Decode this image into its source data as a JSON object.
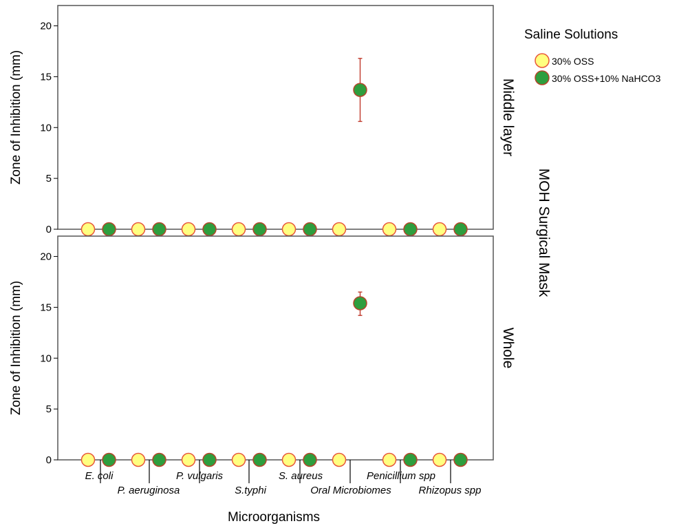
{
  "chart_data": {
    "type": "scatter",
    "xlabel": "Microorganisms",
    "ylabel": "Zone of Inhibition (mm)",
    "facet_label": "MOH Surgical Mask",
    "ylim": [
      0,
      22
    ],
    "yticks": [
      0,
      5,
      10,
      15,
      20
    ],
    "categories": [
      "E. coli",
      "P. aeruginosa",
      "P. vulgaris",
      "S.typhi",
      "S. aureus",
      "Oral Microbiomes",
      "Penicillium spp",
      "Rhizopus spp"
    ],
    "legend": {
      "title": "Saline Solutions",
      "placement": "right",
      "entries": [
        {
          "label": "30% OSS",
          "fill": "#ffff80",
          "stroke": "#e8573a"
        },
        {
          "label": "30% OSS+10% NaHCO3",
          "fill": "#2e9e3e",
          "stroke": "#b5452b"
        }
      ]
    },
    "error_bar_color": "#c0392b",
    "panels": [
      {
        "label": "Middle layer",
        "series": [
          {
            "name": "30% OSS",
            "values": [
              0,
              0,
              0,
              0,
              0,
              0,
              0,
              0
            ],
            "errors": [
              null,
              null,
              null,
              null,
              null,
              null,
              null,
              null
            ]
          },
          {
            "name": "30% OSS+10% NaHCO3",
            "values": [
              0,
              0,
              0,
              0,
              0,
              13.7,
              0,
              0
            ],
            "errors": [
              null,
              null,
              null,
              null,
              null,
              [
                10.6,
                16.8
              ],
              null,
              null
            ]
          }
        ]
      },
      {
        "label": "Whole",
        "series": [
          {
            "name": "30% OSS",
            "values": [
              0,
              0,
              0,
              0,
              0,
              0,
              0,
              0
            ],
            "errors": [
              null,
              null,
              null,
              null,
              null,
              null,
              null,
              null
            ]
          },
          {
            "name": "30% OSS+10% NaHCO3",
            "values": [
              0,
              0,
              0,
              0,
              0,
              15.4,
              0,
              0
            ],
            "errors": [
              null,
              null,
              null,
              null,
              null,
              [
                14.2,
                16.5
              ],
              null,
              null
            ]
          }
        ]
      }
    ]
  }
}
